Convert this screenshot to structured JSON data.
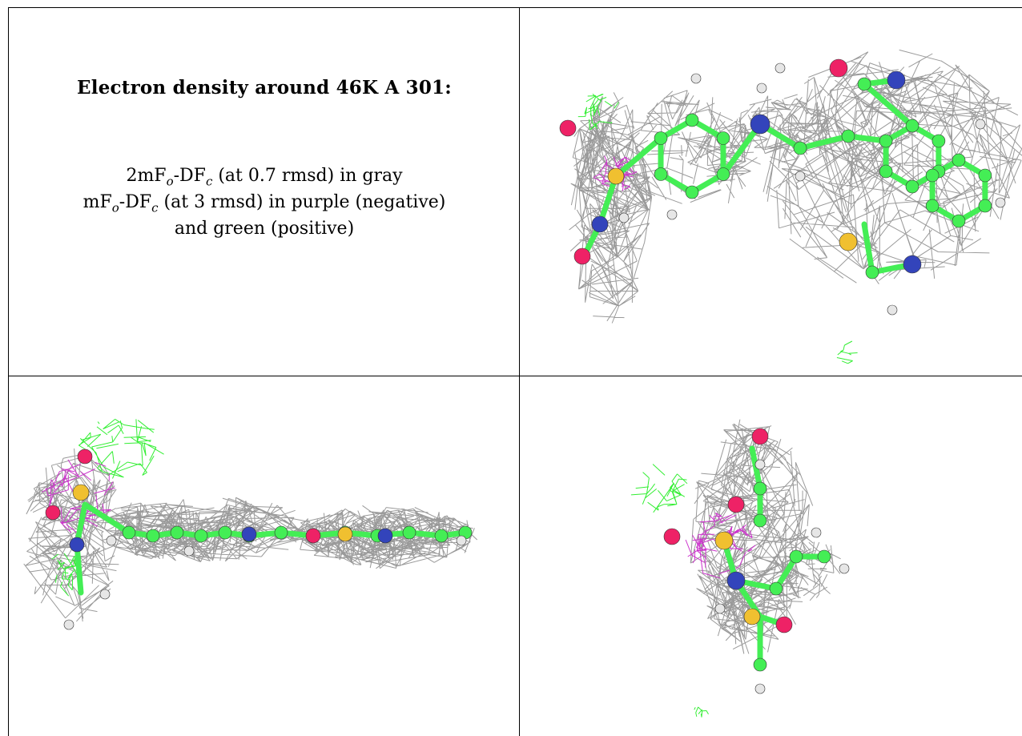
{
  "caption": {
    "title": "Electron density around 46K A 301:",
    "map1_prefix": "2mF",
    "map1_sub_o": "o",
    "map1_mid": "-DF",
    "map1_sub_c": "c",
    "map1_suffix": " (at 0.7 rmsd) in gray",
    "map2_prefix": "mF",
    "map2_sub_o": "o",
    "map2_mid": "-DF",
    "map2_sub_c": "c",
    "map2_suffix": " (at 3 rmsd) in purple (negative)",
    "map2_line2": "and green (positive)"
  },
  "colors": {
    "gray_mesh": "#9a9a9a",
    "negative_mesh": "#cc33cc",
    "positive_mesh": "#33ee33",
    "carbon": "#44ee55",
    "nitrogen": "#3344bb",
    "oxygen": "#ee2266",
    "sulfur": "#f0c030",
    "hydrogen": "#e6e6e6"
  }
}
